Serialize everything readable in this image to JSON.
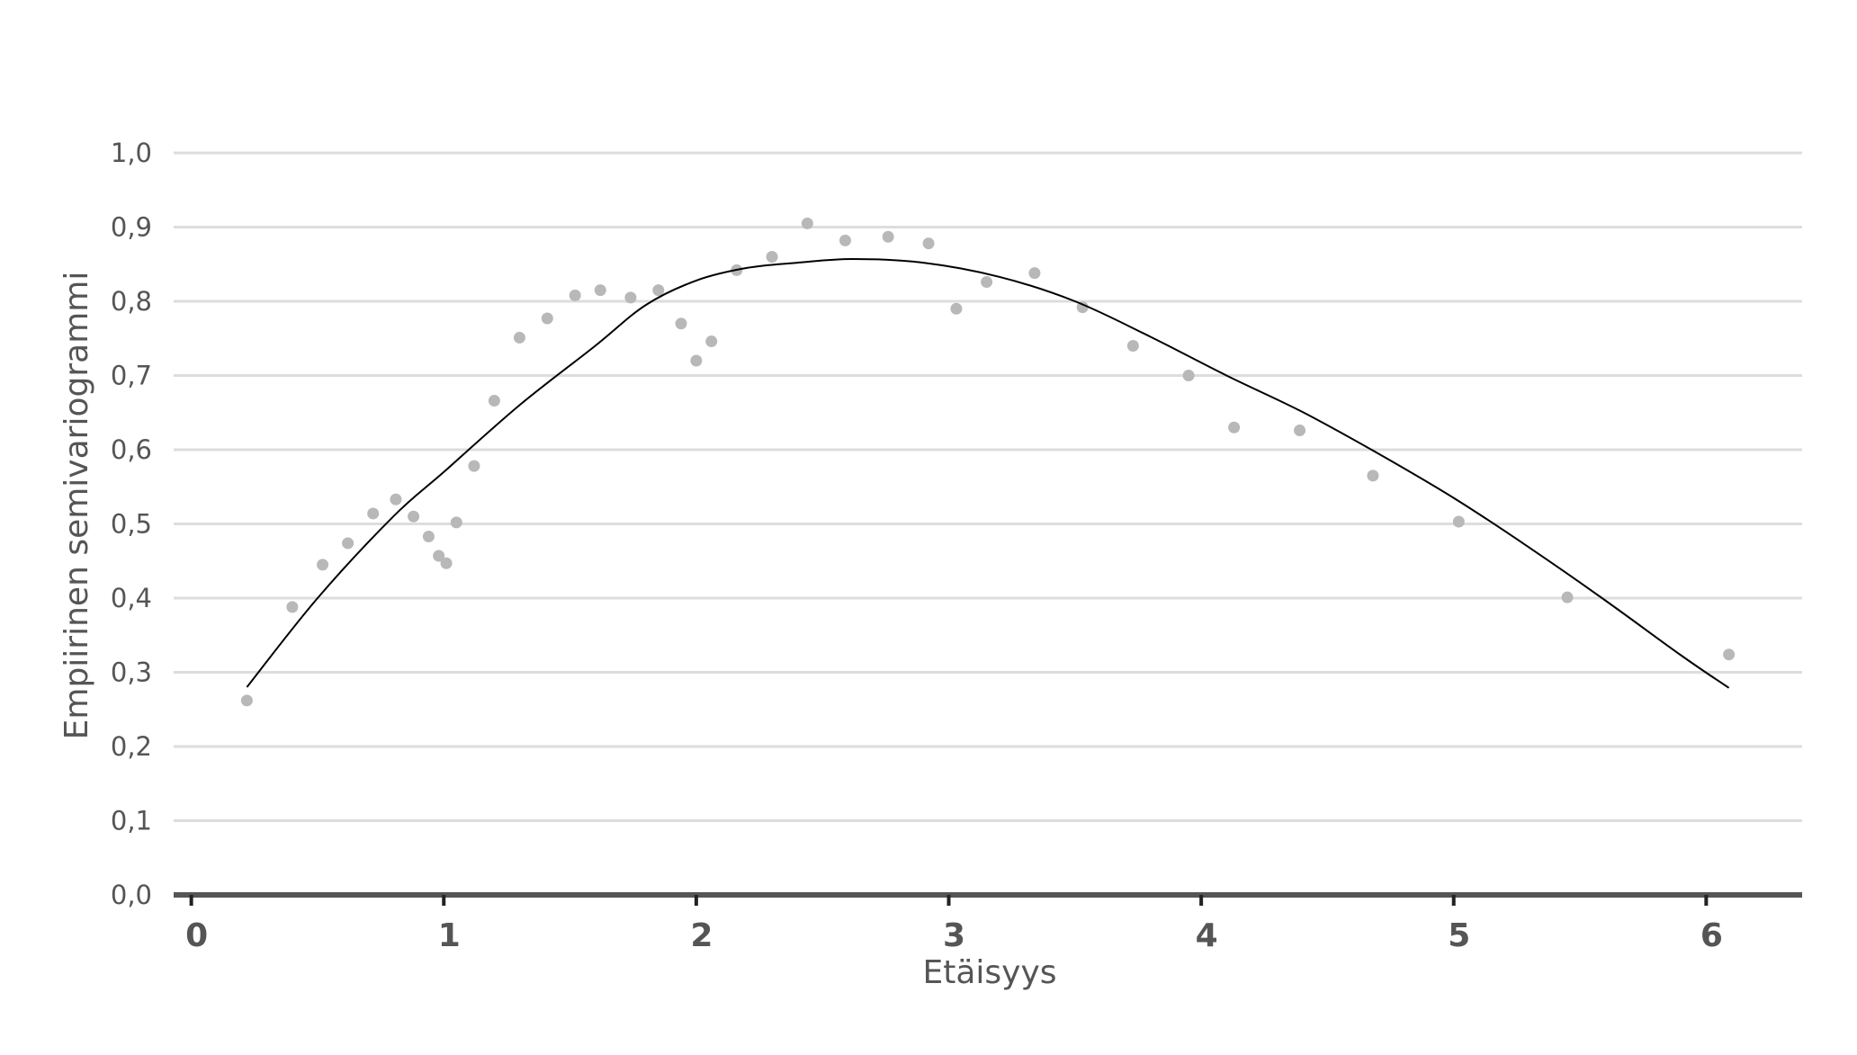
{
  "chart_data": {
    "type": "scatter",
    "xlabel": "Etäisyys",
    "ylabel": "Empiirinen semivariogrammi",
    "xlim": [
      -0.07,
      6.38
    ],
    "ylim": [
      0,
      1.0
    ],
    "x_ticks": [
      0,
      1,
      2,
      3,
      4,
      5,
      6
    ],
    "y_ticks": [
      0.0,
      0.1,
      0.2,
      0.3,
      0.4,
      0.5,
      0.6,
      0.7,
      0.8,
      0.9,
      1.0
    ],
    "x_tick_labels": [
      "0",
      "1",
      "2",
      "3",
      "4",
      "5",
      "6"
    ],
    "y_tick_labels": [
      "0,0",
      "0,1",
      "0,2",
      "0,3",
      "0,4",
      "0,5",
      "0,6",
      "0,7",
      "0,8",
      "0,9",
      "1,0"
    ],
    "grid": true,
    "legend": "none",
    "colors": {
      "points": "#b8b8b8",
      "curve": "#000000",
      "grid": "#dddddd",
      "axis": "#555555"
    },
    "points": {
      "x": [
        0.22,
        0.4,
        0.52,
        0.62,
        0.72,
        0.81,
        0.88,
        0.94,
        0.98,
        1.01,
        1.05,
        1.12,
        1.2,
        1.3,
        1.41,
        1.52,
        1.62,
        1.74,
        1.85,
        1.94,
        2.0,
        2.06,
        2.16,
        2.3,
        2.44,
        2.59,
        2.76,
        2.92,
        3.03,
        3.15,
        3.34,
        3.53,
        3.73,
        3.95,
        4.13,
        4.39,
        4.68,
        5.02,
        5.45,
        6.09
      ],
      "y": [
        0.262,
        0.388,
        0.445,
        0.474,
        0.514,
        0.533,
        0.51,
        0.483,
        0.457,
        0.447,
        0.502,
        0.578,
        0.666,
        0.751,
        0.777,
        0.808,
        0.815,
        0.805,
        0.815,
        0.77,
        0.72,
        0.746,
        0.842,
        0.86,
        0.905,
        0.882,
        0.887,
        0.878,
        0.79,
        0.826,
        0.838,
        0.792,
        0.74,
        0.7,
        0.63,
        0.626,
        0.565,
        0.503,
        0.401,
        0.324
      ]
    },
    "fit_curve": {
      "x": [
        0.22,
        0.5,
        0.8,
        1.0,
        1.3,
        1.6,
        1.8,
        2.0,
        2.2,
        2.4,
        2.62,
        2.9,
        3.2,
        3.5,
        3.8,
        4.1,
        4.4,
        4.7,
        5.0,
        5.3,
        5.6,
        5.9,
        6.09
      ],
      "y": [
        0.28,
        0.4,
        0.51,
        0.57,
        0.66,
        0.74,
        0.795,
        0.828,
        0.845,
        0.852,
        0.857,
        0.852,
        0.833,
        0.8,
        0.752,
        0.7,
        0.651,
        0.595,
        0.535,
        0.468,
        0.397,
        0.323,
        0.279
      ]
    }
  }
}
